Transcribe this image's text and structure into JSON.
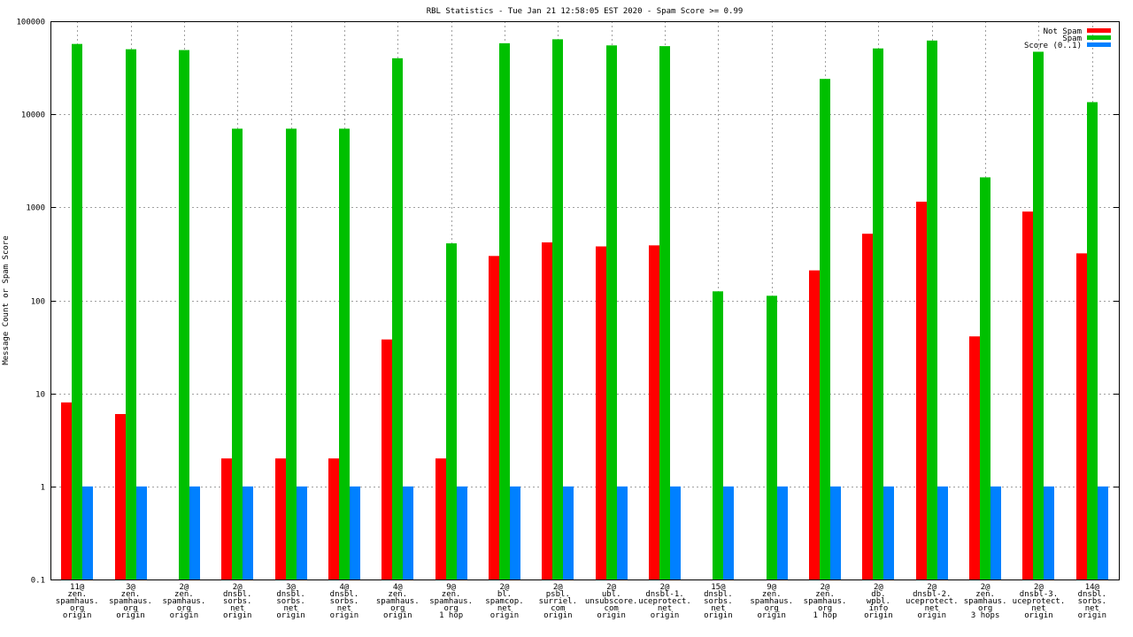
{
  "chart_data": {
    "type": "bar",
    "title": "RBL Statistics - Tue Jan 21 12:58:05 EST 2020 - Spam Score >= 0.99",
    "ylabel": "Message Count or Spam Score",
    "xlabel": "",
    "yscale": "log",
    "ylim": [
      0.1,
      100000
    ],
    "yticks": [
      "0.1",
      "1",
      "10",
      "100",
      "1000",
      "10000",
      "100000"
    ],
    "grid": true,
    "legend_position": "top-right",
    "categories": [
      [
        "11@",
        "zen.",
        "spamhaus.",
        "org",
        "origin"
      ],
      [
        "3@",
        "zen.",
        "spamhaus.",
        "org",
        "origin"
      ],
      [
        "2@",
        "zen.",
        "spamhaus.",
        "org",
        "origin"
      ],
      [
        "2@",
        "dnsbl.",
        "sorbs.",
        "net",
        "origin"
      ],
      [
        "3@",
        "dnsbl.",
        "sorbs.",
        "net",
        "origin"
      ],
      [
        "4@",
        "dnsbl.",
        "sorbs.",
        "net",
        "origin"
      ],
      [
        "4@",
        "zen.",
        "spamhaus.",
        "org",
        "origin"
      ],
      [
        "9@",
        "zen.",
        "spamhaus.",
        "org",
        "1 hop"
      ],
      [
        "2@",
        "bl.",
        "spamcop.",
        "net",
        "origin"
      ],
      [
        "2@",
        "psbl.",
        "surriel.",
        "com",
        "origin"
      ],
      [
        "2@",
        "ubl.",
        "unsubscore.",
        "com",
        "origin"
      ],
      [
        "2@",
        "dnsbl-1.",
        "uceprotect.",
        "net",
        "origin"
      ],
      [
        "15@",
        "dnsbl.",
        "sorbs.",
        "net",
        "origin"
      ],
      [
        "9@",
        "zen.",
        "spamhaus.",
        "org",
        "origin"
      ],
      [
        "2@",
        "zen.",
        "spamhaus.",
        "org",
        "1 hop"
      ],
      [
        "2@",
        "db.",
        "wpbl.",
        "info",
        "origin"
      ],
      [
        "2@",
        "dnsbl-2.",
        "uceprotect.",
        "net",
        "origin"
      ],
      [
        "2@",
        "zen.",
        "spamhaus.",
        "org",
        "3 hops"
      ],
      [
        "2@",
        "dnsbl-3.",
        "uceprotect.",
        "net",
        "origin"
      ],
      [
        "14@",
        "dnsbl.",
        "sorbs.",
        "net",
        "origin"
      ]
    ],
    "series": [
      {
        "name": "Not Spam",
        "color": "#ff0000",
        "values": [
          8,
          6,
          null,
          2,
          2,
          2,
          38,
          2,
          300,
          420,
          380,
          390,
          null,
          null,
          210,
          520,
          1150,
          41,
          900,
          320
        ]
      },
      {
        "name": "Spam",
        "color": "#00c000",
        "values": [
          57000,
          50000,
          49000,
          7000,
          7000,
          7000,
          40000,
          410,
          58000,
          64000,
          55000,
          54000,
          125,
          112,
          24000,
          51000,
          62000,
          2100,
          47000,
          13500
        ]
      },
      {
        "name": "Score (0..1)",
        "color": "#0080ff",
        "values": [
          1,
          1,
          1,
          1,
          1,
          1,
          1,
          1,
          1,
          1,
          1,
          1,
          1,
          1,
          1,
          1,
          1,
          1,
          1,
          1
        ]
      }
    ]
  }
}
